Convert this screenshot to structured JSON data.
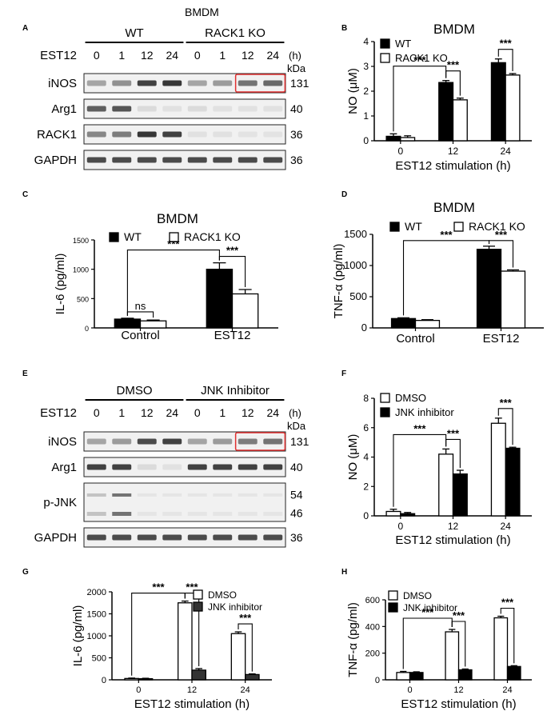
{
  "panel_labels": {
    "A": "A",
    "B": "B",
    "C": "C",
    "D": "D",
    "E": "E",
    "F": "F",
    "G": "G",
    "H": "H"
  },
  "blot_A": {
    "title": "BMDM",
    "groups": [
      "WT",
      "RACK1 KO"
    ],
    "treatment_label": "EST12",
    "lanes": [
      "0",
      "1",
      "12",
      "24",
      "0",
      "1",
      "12",
      "24"
    ],
    "unit": "(h)",
    "kda_label": "kDa",
    "rows": [
      {
        "name": "iNOS",
        "kda": "131",
        "intensity": [
          0.35,
          0.45,
          0.85,
          0.9,
          0.35,
          0.4,
          0.6,
          0.65
        ]
      },
      {
        "name": "Arg1",
        "kda": "40",
        "intensity": [
          0.7,
          0.75,
          0.08,
          0.05,
          0.08,
          0.05,
          0.05,
          0.05
        ]
      },
      {
        "name": "RACK1",
        "kda": "36",
        "intensity": [
          0.5,
          0.55,
          0.9,
          0.85,
          0.05,
          0.05,
          0.04,
          0.04
        ]
      },
      {
        "name": "GAPDH",
        "kda": "36",
        "intensity": [
          0.8,
          0.8,
          0.8,
          0.8,
          0.8,
          0.8,
          0.8,
          0.8
        ]
      }
    ],
    "highlight_row": 0,
    "highlight_lanes": [
      6,
      7
    ],
    "highlight_color": "#e03030"
  },
  "blot_E": {
    "groups": [
      "DMSO",
      "JNK Inhibitor"
    ],
    "treatment_label": "EST12",
    "lanes": [
      "0",
      "1",
      "12",
      "24",
      "0",
      "1",
      "12",
      "24"
    ],
    "unit": "(h)",
    "kda_label": "kDa",
    "rows": [
      {
        "name": "iNOS",
        "kda": "131",
        "intensity": [
          0.35,
          0.4,
          0.8,
          0.85,
          0.35,
          0.4,
          0.55,
          0.6
        ]
      },
      {
        "name": "Arg1",
        "kda": "40",
        "intensity": [
          0.85,
          0.85,
          0.08,
          0.05,
          0.85,
          0.85,
          0.85,
          0.85
        ]
      },
      {
        "name": "p-JNK",
        "kda": "54",
        "kda2": "46",
        "tall": true,
        "intensity": [
          0.2,
          0.6,
          0.03,
          0.03,
          0.03,
          0.03,
          0.03,
          0.03
        ]
      },
      {
        "name": "GAPDH",
        "kda": "36",
        "intensity": [
          0.8,
          0.8,
          0.8,
          0.8,
          0.8,
          0.8,
          0.8,
          0.8
        ]
      }
    ],
    "highlight_row": 0,
    "highlight_lanes": [
      6,
      7
    ],
    "highlight_color": "#e03030"
  },
  "chart_data": [
    {
      "panel": "B",
      "type": "bar",
      "title": "BMDM",
      "xlabel": "EST12 stimulation (h)",
      "ylabel": "NO (μM)",
      "categories": [
        "0",
        "12",
        "24"
      ],
      "ylim": [
        0,
        4
      ],
      "yticks": [
        0,
        1,
        2,
        3,
        4
      ],
      "legend_position": "top-left",
      "series": [
        {
          "name": "WT",
          "fill": "#000000",
          "values": [
            0.18,
            2.35,
            3.15
          ],
          "errors": [
            0.1,
            0.08,
            0.15
          ]
        },
        {
          "name": "RACK1 KO",
          "fill": "#ffffff",
          "values": [
            0.13,
            1.65,
            2.65
          ],
          "errors": [
            0.07,
            0.07,
            0.06
          ]
        }
      ],
      "sig": [
        {
          "from": [
            0,
            0
          ],
          "to": [
            1,
            0
          ],
          "label": "***"
        },
        {
          "from": [
            1,
            0
          ],
          "to": [
            1,
            1
          ],
          "label": "***"
        },
        {
          "from": [
            2,
            0
          ],
          "to": [
            2,
            1
          ],
          "label": "***"
        }
      ]
    },
    {
      "panel": "C",
      "type": "bar",
      "title": "BMDM",
      "xlabel": "",
      "ylabel": "IL-6 (pg/ml)",
      "categories": [
        "Control",
        "EST12"
      ],
      "ylim": [
        0,
        1500
      ],
      "yticks": [
        0,
        500,
        1000,
        1500
      ],
      "legend_position": "top",
      "series": [
        {
          "name": "WT",
          "fill": "#000000",
          "values": [
            150,
            1000
          ],
          "errors": [
            15,
            110
          ]
        },
        {
          "name": "RACK1 KO",
          "fill": "#ffffff",
          "values": [
            120,
            580
          ],
          "errors": [
            15,
            75
          ]
        }
      ],
      "sig": [
        {
          "from": [
            0,
            0
          ],
          "to": [
            0,
            1
          ],
          "label": "ns"
        },
        {
          "from": [
            0,
            0
          ],
          "to": [
            1,
            0
          ],
          "label": "***"
        },
        {
          "from": [
            1,
            0
          ],
          "to": [
            1,
            1
          ],
          "label": "***"
        }
      ]
    },
    {
      "panel": "D",
      "type": "bar",
      "title": "BMDM",
      "xlabel": "",
      "ylabel": "TNF-α (pg/ml)",
      "categories": [
        "Control",
        "EST12"
      ],
      "ylim": [
        0,
        1500
      ],
      "yticks": [
        0,
        500,
        1000,
        1500
      ],
      "legend_position": "top",
      "series": [
        {
          "name": "WT",
          "fill": "#000000",
          "values": [
            150,
            1260
          ],
          "errors": [
            12,
            50
          ]
        },
        {
          "name": "RACK1 KO",
          "fill": "#ffffff",
          "values": [
            120,
            910
          ],
          "errors": [
            12,
            20
          ]
        }
      ],
      "sig": [
        {
          "from": [
            0,
            0
          ],
          "to": [
            1,
            0
          ],
          "label": "***"
        },
        {
          "from": [
            1,
            0
          ],
          "to": [
            1,
            1
          ],
          "label": "***"
        }
      ]
    },
    {
      "panel": "F",
      "type": "bar",
      "title": "",
      "xlabel": "EST12 stimulation (h)",
      "ylabel": "NO (μM)",
      "categories": [
        "0",
        "12",
        "24"
      ],
      "ylim": [
        0,
        8
      ],
      "yticks": [
        0,
        2,
        4,
        6,
        8
      ],
      "legend_position": "top-left",
      "series": [
        {
          "name": "DMSO",
          "fill": "#ffffff",
          "values": [
            0.3,
            4.2,
            6.3
          ],
          "errors": [
            0.15,
            0.35,
            0.35
          ]
        },
        {
          "name": "JNK inhibitor",
          "fill": "#000000",
          "values": [
            0.15,
            2.85,
            4.6
          ],
          "errors": [
            0.08,
            0.25,
            0.07
          ]
        }
      ],
      "sig": [
        {
          "from": [
            0,
            0
          ],
          "to": [
            1,
            0
          ],
          "label": "***"
        },
        {
          "from": [
            1,
            0
          ],
          "to": [
            1,
            1
          ],
          "label": "***"
        },
        {
          "from": [
            2,
            0
          ],
          "to": [
            2,
            1
          ],
          "label": "***"
        }
      ]
    },
    {
      "panel": "G",
      "type": "bar",
      "title": "",
      "xlabel": "EST12 stimulation (h)",
      "ylabel": "IL-6 (pg/ml)",
      "categories": [
        "0",
        "12",
        "24"
      ],
      "ylim": [
        0,
        2000
      ],
      "yticks": [
        0,
        500,
        1000,
        1500,
        2000
      ],
      "legend_position": "top-right",
      "series": [
        {
          "name": "DMSO",
          "fill": "#ffffff",
          "values": [
            30,
            1750,
            1050
          ],
          "errors": [
            10,
            40,
            40
          ]
        },
        {
          "name": "JNK inhibitor",
          "fill": "#333333",
          "values": [
            25,
            220,
            120
          ],
          "errors": [
            10,
            35,
            15
          ]
        }
      ],
      "sig": [
        {
          "from": [
            0,
            0
          ],
          "to": [
            1,
            0
          ],
          "label": "***"
        },
        {
          "from": [
            1,
            0
          ],
          "to": [
            1,
            1
          ],
          "label": "***"
        },
        {
          "from": [
            2,
            0
          ],
          "to": [
            2,
            1
          ],
          "label": "***"
        }
      ]
    },
    {
      "panel": "H",
      "type": "bar",
      "title": "",
      "xlabel": "EST12 stimulation (h)",
      "ylabel": "TNF-α (pg/ml)",
      "categories": [
        "0",
        "12",
        "24"
      ],
      "ylim": [
        0,
        600
      ],
      "yticks": [
        0,
        200,
        400,
        600
      ],
      "legend_position": "top-left",
      "series": [
        {
          "name": "DMSO",
          "fill": "#ffffff",
          "values": [
            55,
            360,
            465
          ],
          "errors": [
            8,
            18,
            12
          ]
        },
        {
          "name": "JNK inhibitor",
          "fill": "#000000",
          "values": [
            55,
            75,
            100
          ],
          "errors": [
            5,
            6,
            6
          ]
        }
      ],
      "sig": [
        {
          "from": [
            0,
            0
          ],
          "to": [
            1,
            0
          ],
          "label": "***"
        },
        {
          "from": [
            1,
            0
          ],
          "to": [
            1,
            1
          ],
          "label": "***"
        },
        {
          "from": [
            2,
            0
          ],
          "to": [
            2,
            1
          ],
          "label": "***"
        }
      ]
    }
  ]
}
